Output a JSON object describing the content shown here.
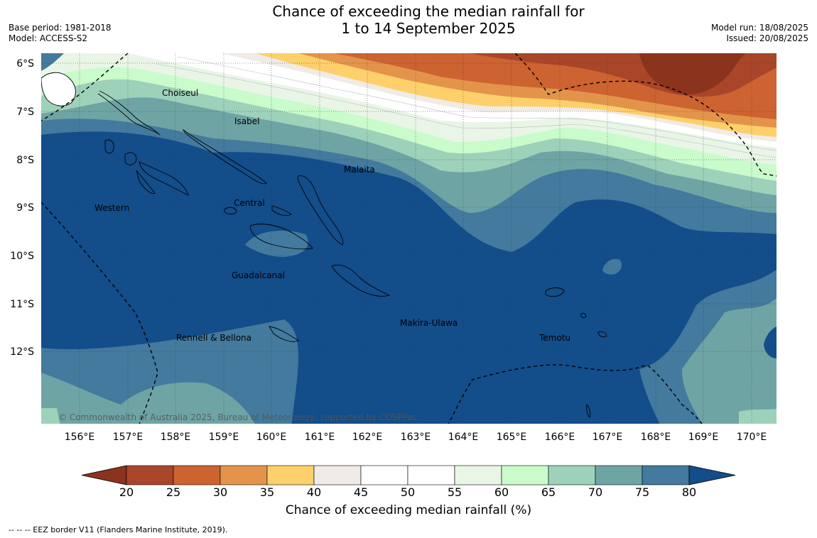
{
  "header": {
    "title_line1": "Chance of exceeding the median rainfall for",
    "title_line2": "1 to 14 September 2025",
    "base_period": "Base period: 1981-2018",
    "model": "Model: ACCESS-S2",
    "model_run": "Model run: 18/08/2025",
    "issued": "Issued: 20/08/2025"
  },
  "map": {
    "lat_ticks": [
      "6°S",
      "7°S",
      "8°S",
      "9°S",
      "10°S",
      "11°S",
      "12°S"
    ],
    "lon_ticks": [
      "156°E",
      "157°E",
      "158°E",
      "159°E",
      "160°E",
      "161°E",
      "162°E",
      "163°E",
      "164°E",
      "165°E",
      "166°E",
      "167°E",
      "168°E",
      "169°E",
      "170°E"
    ],
    "places": {
      "choiseul": "Choiseul",
      "isabel": "Isabel",
      "malaita": "Malaita",
      "western": "Western",
      "central": "Central",
      "guadalcanal": "Guadalcanal",
      "makira": "Makira-Ulawa",
      "temotu": "Temotu",
      "rennell": "Rennell & Bellona"
    },
    "copyright": "© Commonwealth of Australia 2025, Bureau of Meteorology, supported by COSPPac"
  },
  "colorbar": {
    "labels": [
      "20",
      "25",
      "30",
      "35",
      "40",
      "45",
      "50",
      "55",
      "60",
      "65",
      "70",
      "75",
      "80"
    ],
    "colors": [
      "#a9462a",
      "#cc6331",
      "#e3944a",
      "#fdd06b",
      "#f0ebe6",
      "#ffffff",
      "#ffffff",
      "#e9f5e7",
      "#c9fbcb",
      "#9ed1ba",
      "#6fa4a5",
      "#437a9d"
    ],
    "low_color": "#8c331e",
    "high_color": "#134d8a",
    "title": "Chance of exceeding median rainfall (%)"
  },
  "footnote": "--  --  -- EEZ border V11 (Flanders Marine Institute, 2019)."
}
